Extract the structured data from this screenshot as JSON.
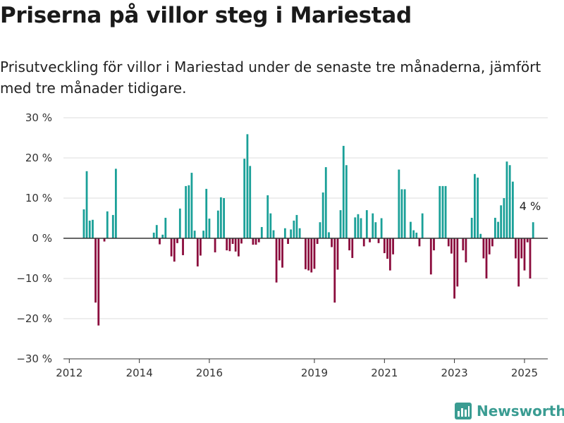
{
  "title": "Priserna på villor steg i Mariestad",
  "subtitle": "Prisutveckling för villor i Mariestad under de senaste tre månaderna, jämfört med tre månader tidigare.",
  "brand": "Newsworthy",
  "colors": {
    "positive": "#1aa098",
    "negative": "#8b0c3d",
    "grid": "#dddddd",
    "zero": "#333333",
    "brand": "#3a9c92"
  },
  "chart_data": {
    "type": "bar",
    "x_domain": [
      "2011-11-01",
      "2025-09-01"
    ],
    "ylim": [
      -30,
      30
    ],
    "grid": true,
    "y_ticks": [
      {
        "value": 30,
        "label": "30 %"
      },
      {
        "value": 20,
        "label": "20 %"
      },
      {
        "value": 10,
        "label": "10 %"
      },
      {
        "value": 0,
        "label": "0 %"
      },
      {
        "value": -10,
        "label": "−10 %"
      },
      {
        "value": -20,
        "label": "−20 %"
      },
      {
        "value": -30,
        "label": "−30 %"
      }
    ],
    "x_ticks": [
      {
        "date": "2012-01-01",
        "label": "2012"
      },
      {
        "date": "2014-01-01",
        "label": "2014"
      },
      {
        "date": "2016-01-01",
        "label": "2016"
      },
      {
        "date": "2019-01-01",
        "label": "2019"
      },
      {
        "date": "2021-01-01",
        "label": "2021"
      },
      {
        "date": "2023-01-01",
        "label": "2023"
      },
      {
        "date": "2025-01-01",
        "label": "2025"
      }
    ],
    "annotation": {
      "date": "2025-03-01",
      "value": 4,
      "label": "4 %"
    },
    "series": [
      {
        "values": [
          [
            "2012-06-01",
            7.2
          ],
          [
            "2012-07-01",
            16.7
          ],
          [
            "2012-08-01",
            4.4
          ],
          [
            "2012-09-01",
            4.6
          ],
          [
            "2012-10-01",
            -16
          ],
          [
            "2012-11-01",
            -21.7
          ],
          [
            "2012-12-01",
            0
          ],
          [
            "2013-01-01",
            -0.8
          ],
          [
            "2013-02-01",
            6.7
          ],
          [
            "2013-03-01",
            0
          ],
          [
            "2013-04-01",
            5.8
          ],
          [
            "2013-05-01",
            17.3
          ],
          [
            "2014-06-01",
            1.4
          ],
          [
            "2014-07-01",
            3.3
          ],
          [
            "2014-08-01",
            -1.5
          ],
          [
            "2014-09-01",
            0.9
          ],
          [
            "2014-10-01",
            5.1
          ],
          [
            "2014-11-01",
            0
          ],
          [
            "2014-12-01",
            -4.5
          ],
          [
            "2015-01-01",
            -5.8
          ],
          [
            "2015-02-01",
            -1.2
          ],
          [
            "2015-03-01",
            7.4
          ],
          [
            "2015-04-01",
            -4.2
          ],
          [
            "2015-05-01",
            13
          ],
          [
            "2015-06-01",
            13.2
          ],
          [
            "2015-07-01",
            16.3
          ],
          [
            "2015-08-01",
            1.9
          ],
          [
            "2015-09-01",
            -7
          ],
          [
            "2015-10-01",
            -4.3
          ],
          [
            "2015-11-01",
            1.9
          ],
          [
            "2015-12-01",
            12.3
          ],
          [
            "2016-01-01",
            4.9
          ],
          [
            "2016-02-01",
            0
          ],
          [
            "2016-03-01",
            -3.5
          ],
          [
            "2016-04-01",
            6.9
          ],
          [
            "2016-05-01",
            10.2
          ],
          [
            "2016-06-01",
            10
          ],
          [
            "2016-07-01",
            -3
          ],
          [
            "2016-08-01",
            -3.2
          ],
          [
            "2016-09-01",
            -1.4
          ],
          [
            "2016-10-01",
            -3.3
          ],
          [
            "2016-11-01",
            -4.5
          ],
          [
            "2016-12-01",
            -1.3
          ],
          [
            "2017-01-01",
            19.8
          ],
          [
            "2017-02-01",
            25.9
          ],
          [
            "2017-03-01",
            18
          ],
          [
            "2017-04-01",
            -1.6
          ],
          [
            "2017-05-01",
            -1.6
          ],
          [
            "2017-06-01",
            -1
          ],
          [
            "2017-07-01",
            2.8
          ],
          [
            "2017-08-01",
            0
          ],
          [
            "2017-09-01",
            10.7
          ],
          [
            "2017-10-01",
            6.2
          ],
          [
            "2017-11-01",
            2
          ],
          [
            "2017-12-01",
            -11
          ],
          [
            "2018-01-01",
            -5.5
          ],
          [
            "2018-02-01",
            -7.3
          ],
          [
            "2018-03-01",
            2.5
          ],
          [
            "2018-04-01",
            -1.4
          ],
          [
            "2018-05-01",
            2.2
          ],
          [
            "2018-06-01",
            4.4
          ],
          [
            "2018-07-01",
            5.8
          ],
          [
            "2018-08-01",
            2.5
          ],
          [
            "2018-09-01",
            0
          ],
          [
            "2018-10-01",
            -7.7
          ],
          [
            "2018-11-01",
            -8
          ],
          [
            "2018-12-01",
            -8.5
          ],
          [
            "2019-01-01",
            -7.6
          ],
          [
            "2019-02-01",
            -1.4
          ],
          [
            "2019-03-01",
            4
          ],
          [
            "2019-04-01",
            11.4
          ],
          [
            "2019-05-01",
            17.7
          ],
          [
            "2019-06-01",
            1.5
          ],
          [
            "2019-07-01",
            -2.2
          ],
          [
            "2019-08-01",
            -16
          ],
          [
            "2019-09-01",
            -7.8
          ],
          [
            "2019-10-01",
            7
          ],
          [
            "2019-11-01",
            23
          ],
          [
            "2019-12-01",
            18.2
          ],
          [
            "2020-01-01",
            -3
          ],
          [
            "2020-02-01",
            -4.9
          ],
          [
            "2020-03-01",
            5.2
          ],
          [
            "2020-04-01",
            6
          ],
          [
            "2020-05-01",
            5
          ],
          [
            "2020-06-01",
            -2
          ],
          [
            "2020-07-01",
            7
          ],
          [
            "2020-08-01",
            -1
          ],
          [
            "2020-09-01",
            6.2
          ],
          [
            "2020-10-01",
            4
          ],
          [
            "2020-11-01",
            -1.2
          ],
          [
            "2020-12-01",
            5
          ],
          [
            "2021-01-01",
            -3.7
          ],
          [
            "2021-02-01",
            -5.1
          ],
          [
            "2021-03-01",
            -8
          ],
          [
            "2021-04-01",
            -4
          ],
          [
            "2021-05-01",
            0
          ],
          [
            "2021-06-01",
            17.1
          ],
          [
            "2021-07-01",
            12.2
          ],
          [
            "2021-08-01",
            12.2
          ],
          [
            "2021-09-01",
            0
          ],
          [
            "2021-10-01",
            4.1
          ],
          [
            "2021-11-01",
            2
          ],
          [
            "2021-12-01",
            1.4
          ],
          [
            "2022-01-01",
            -2
          ],
          [
            "2022-02-01",
            6.2
          ],
          [
            "2022-03-01",
            0
          ],
          [
            "2022-04-01",
            0
          ],
          [
            "2022-05-01",
            -9
          ],
          [
            "2022-06-01",
            -3
          ],
          [
            "2022-07-01",
            0
          ],
          [
            "2022-08-01",
            13
          ],
          [
            "2022-09-01",
            13
          ],
          [
            "2022-10-01",
            13
          ],
          [
            "2022-11-01",
            -2
          ],
          [
            "2022-12-01",
            -3.8
          ],
          [
            "2023-01-01",
            -15
          ],
          [
            "2023-02-01",
            -12
          ],
          [
            "2023-03-01",
            0
          ],
          [
            "2023-04-01",
            -3
          ],
          [
            "2023-05-01",
            -6
          ],
          [
            "2023-06-01",
            0
          ],
          [
            "2023-07-01",
            5.1
          ],
          [
            "2023-08-01",
            16
          ],
          [
            "2023-09-01",
            15.1
          ],
          [
            "2023-10-01",
            1.1
          ],
          [
            "2023-11-01",
            -5
          ],
          [
            "2023-12-01",
            -10
          ],
          [
            "2024-01-01",
            -4
          ],
          [
            "2024-02-01",
            -2
          ],
          [
            "2024-03-01",
            5.1
          ],
          [
            "2024-04-01",
            4.1
          ],
          [
            "2024-05-01",
            8.2
          ],
          [
            "2024-06-01",
            10
          ],
          [
            "2024-07-01",
            19.1
          ],
          [
            "2024-08-01",
            18.2
          ],
          [
            "2024-09-01",
            14.1
          ],
          [
            "2024-10-01",
            -5
          ],
          [
            "2024-11-01",
            -12
          ],
          [
            "2024-12-01",
            -5
          ],
          [
            "2025-01-01",
            -8
          ],
          [
            "2025-02-01",
            -1
          ],
          [
            "2025-03-01",
            -10
          ],
          [
            "2025-04-01",
            4
          ]
        ]
      }
    ]
  }
}
